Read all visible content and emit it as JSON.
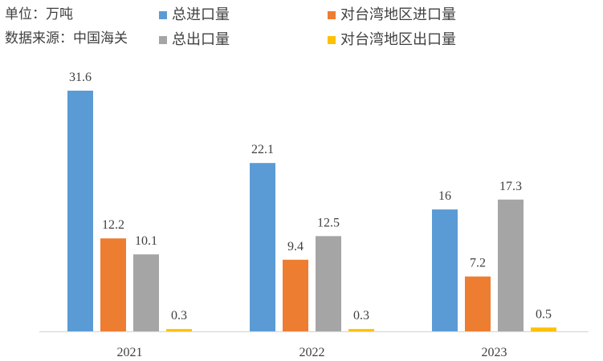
{
  "unit_note": "单位：万吨",
  "source_note": "数据来源：中国海关",
  "colors": {
    "s0": "#5B9BD5",
    "s1": "#ED7D31",
    "s2": "#A5A5A5",
    "s3": "#FFC000",
    "axis": "#D9D9D9"
  },
  "chart_data": {
    "type": "bar",
    "categories": [
      "2021",
      "2022",
      "2023"
    ],
    "series": [
      {
        "name": "总进口量",
        "values": [
          31.6,
          22.1,
          16
        ],
        "labels": [
          "31.6",
          "22.1",
          "16"
        ]
      },
      {
        "name": "对台湾地区进口量",
        "values": [
          12.2,
          9.4,
          7.2
        ],
        "labels": [
          "12.2",
          "9.4",
          "7.2"
        ]
      },
      {
        "name": "总出口量",
        "values": [
          10.1,
          12.5,
          17.3
        ],
        "labels": [
          "10.1",
          "12.5",
          "17.3"
        ]
      },
      {
        "name": "对台湾地区出口量",
        "values": [
          0.3,
          0.3,
          0.5
        ],
        "labels": [
          "0.3",
          "0.3",
          "0.5"
        ]
      }
    ],
    "ylim": [
      0,
      31.6
    ],
    "grid": false,
    "legend_position": "top"
  }
}
